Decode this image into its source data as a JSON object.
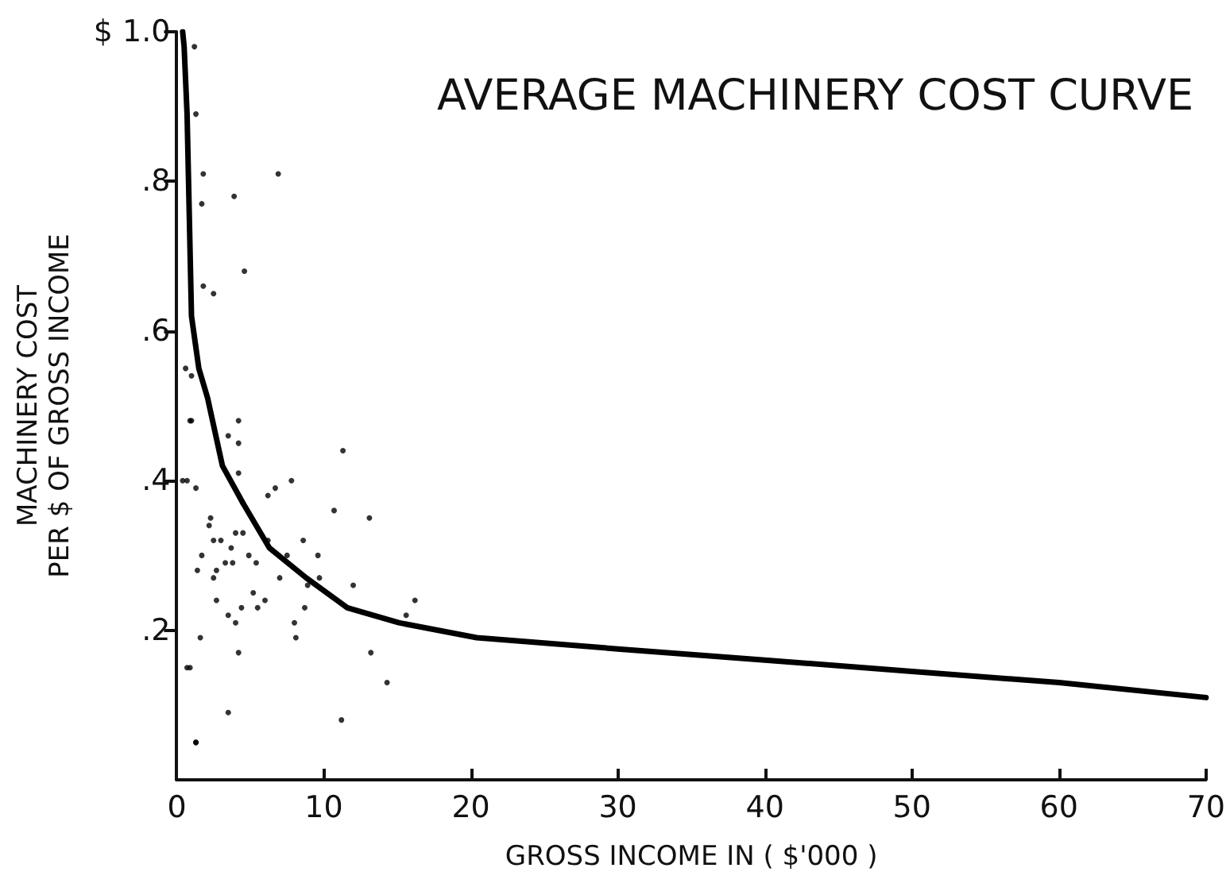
{
  "chart_data": {
    "type": "scatter",
    "title": "AVERAGE MACHINERY COST CURVE",
    "xlabel": "GROSS INCOME IN ( $'000 )",
    "ylabel": "MACHINERY COST\nPER $ OF GROSS INCOME",
    "xlim": [
      0,
      70
    ],
    "ylim": [
      0,
      1.0
    ],
    "xticks": [
      0,
      10,
      20,
      30,
      40,
      50,
      60,
      70
    ],
    "yticks": [
      {
        "value": 0.2,
        "label": ".2"
      },
      {
        "value": 0.4,
        "label": ".4"
      },
      {
        "value": 0.6,
        "label": ".6"
      },
      {
        "value": 0.8,
        "label": ".8"
      },
      {
        "value": 1.0,
        "label": "$ 1.0"
      }
    ],
    "grid": false,
    "series": [
      {
        "marker": "circle",
        "color": "#000000",
        "x": [
          1.2,
          1.3,
          1.8,
          6.9,
          3.9,
          1.7,
          4.6,
          1.8,
          2.5,
          1.0,
          0.6,
          0.9,
          0.4,
          0.7,
          1.3,
          1.0,
          4.2,
          3.5,
          4.2,
          4.2,
          11.3,
          0.7,
          1.3,
          7.8,
          6.7,
          6.2,
          4.5,
          10.7,
          13.1,
          2.3,
          2.2,
          4.0,
          4.5,
          2.5,
          3.0,
          6.2,
          8.6,
          3.7,
          1.7,
          4.9,
          7.5,
          9.6,
          3.3,
          3.8,
          5.4,
          1.4,
          2.7,
          2.5,
          7.0,
          9.7,
          8.9,
          12.0,
          5.2,
          2.7,
          6.0,
          16.2,
          3.5,
          4.4,
          5.5,
          8.7,
          15.6,
          4.0,
          8.0,
          1.6,
          8.1,
          13.2,
          4.2,
          0.9,
          14.3,
          3.5,
          11.2,
          1.3
        ],
        "values": [
          0.98,
          0.89,
          0.81,
          0.81,
          0.78,
          0.77,
          0.68,
          0.66,
          0.65,
          0.54,
          0.55,
          0.48,
          0.4,
          0.15,
          0.05,
          0.48,
          0.48,
          0.46,
          0.45,
          0.41,
          0.44,
          0.4,
          0.39,
          0.4,
          0.39,
          0.38,
          0.37,
          0.36,
          0.35,
          0.35,
          0.34,
          0.33,
          0.33,
          0.32,
          0.32,
          0.32,
          0.32,
          0.31,
          0.3,
          0.3,
          0.3,
          0.3,
          0.29,
          0.29,
          0.29,
          0.28,
          0.28,
          0.27,
          0.27,
          0.27,
          0.26,
          0.26,
          0.25,
          0.24,
          0.24,
          0.24,
          0.22,
          0.23,
          0.23,
          0.23,
          0.22,
          0.21,
          0.21,
          0.19,
          0.19,
          0.17,
          0.17,
          0.15,
          0.13,
          0.09,
          0.08,
          0.05
        ]
      },
      {
        "type": "line",
        "marker": "none",
        "line_style": "solid",
        "color": "#000000",
        "x": [
          0.4,
          0.5,
          0.7,
          1.0,
          1.5,
          2.1,
          3.1,
          4.5,
          6.3,
          8.8,
          11.6,
          15.1,
          20.4,
          30,
          40,
          50,
          60,
          70
        ],
        "values": [
          1.0,
          0.98,
          0.89,
          0.62,
          0.55,
          0.51,
          0.42,
          0.37,
          0.31,
          0.27,
          0.23,
          0.21,
          0.19,
          0.175,
          0.16,
          0.145,
          0.13,
          0.11
        ]
      }
    ]
  }
}
